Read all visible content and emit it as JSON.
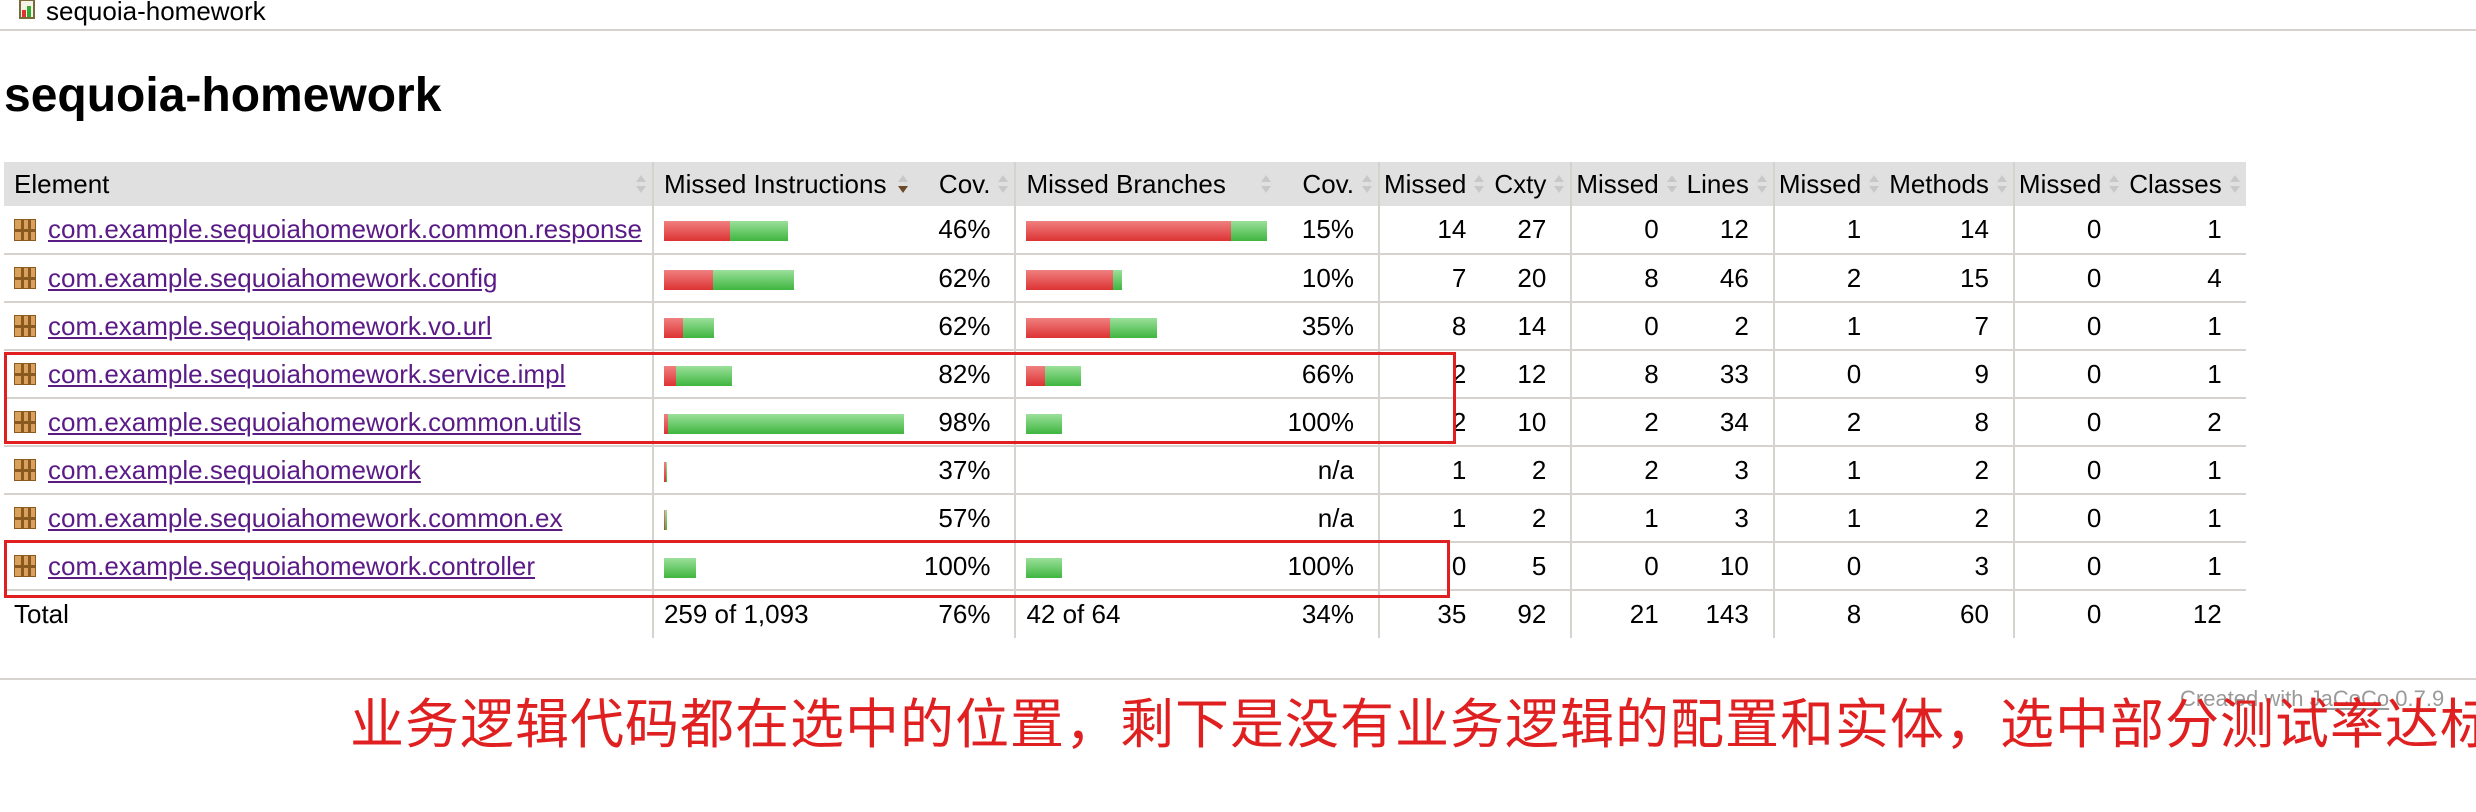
{
  "breadcrumb": {
    "text": "sequoia-homework"
  },
  "page_title": "sequoia-homework",
  "table": {
    "headers": {
      "element": "Element",
      "missed_instructions": "Missed Instructions",
      "cov1": "Cov.",
      "missed_branches": "Missed Branches",
      "cov2": "Cov.",
      "missed_cxty": "Missed",
      "cxty": "Cxty",
      "missed_lines": "Missed",
      "lines": "Lines",
      "missed_methods": "Missed",
      "methods": "Methods",
      "missed_classes": "Missed",
      "classes": "Classes"
    },
    "rows": [
      {
        "name": "com.example.sequoiahomework.common.response",
        "instr_cov": "46%",
        "branch_cov": "15%",
        "missed_cxty": "14",
        "cxty": "27",
        "missed_lines": "0",
        "lines": "12",
        "missed_methods": "1",
        "methods": "14",
        "missed_classes": "0",
        "classes": "1",
        "ibar": {
          "red": 66,
          "green": 58
        },
        "bbar": {
          "red": 205,
          "green": 36
        }
      },
      {
        "name": "com.example.sequoiahomework.config",
        "instr_cov": "62%",
        "branch_cov": "10%",
        "missed_cxty": "7",
        "cxty": "20",
        "missed_lines": "8",
        "lines": "46",
        "missed_methods": "2",
        "methods": "15",
        "missed_classes": "0",
        "classes": "4",
        "ibar": {
          "red": 49,
          "green": 81
        },
        "bbar": {
          "red": 87,
          "green": 9
        }
      },
      {
        "name": "com.example.sequoiahomework.vo.url",
        "instr_cov": "62%",
        "branch_cov": "35%",
        "missed_cxty": "8",
        "cxty": "14",
        "missed_lines": "0",
        "lines": "2",
        "missed_methods": "1",
        "methods": "7",
        "missed_classes": "0",
        "classes": "1",
        "ibar": {
          "red": 19,
          "green": 31
        },
        "bbar": {
          "red": 84,
          "green": 47
        }
      },
      {
        "name": "com.example.sequoiahomework.service.impl",
        "instr_cov": "82%",
        "branch_cov": "66%",
        "missed_cxty": "2",
        "cxty": "12",
        "missed_lines": "8",
        "lines": "33",
        "missed_methods": "0",
        "methods": "9",
        "missed_classes": "0",
        "classes": "1",
        "ibar": {
          "red": 12,
          "green": 56
        },
        "bbar": {
          "red": 19,
          "green": 36
        }
      },
      {
        "name": "com.example.sequoiahomework.common.utils",
        "instr_cov": "98%",
        "branch_cov": "100%",
        "missed_cxty": "2",
        "cxty": "10",
        "missed_lines": "2",
        "lines": "34",
        "missed_methods": "2",
        "methods": "8",
        "missed_classes": "0",
        "classes": "2",
        "ibar": {
          "red": 4,
          "green": 236
        },
        "bbar": {
          "red": 0,
          "green": 36
        }
      },
      {
        "name": "com.example.sequoiahomework",
        "instr_cov": "37%",
        "branch_cov": "n/a",
        "missed_cxty": "1",
        "cxty": "2",
        "missed_lines": "2",
        "lines": "3",
        "missed_methods": "1",
        "methods": "2",
        "missed_classes": "0",
        "classes": "1",
        "ibar": {
          "red": 2,
          "green": 1
        },
        "bbar": {
          "red": 0,
          "green": 0
        }
      },
      {
        "name": "com.example.sequoiahomework.common.ex",
        "instr_cov": "57%",
        "branch_cov": "n/a",
        "missed_cxty": "1",
        "cxty": "2",
        "missed_lines": "1",
        "lines": "3",
        "missed_methods": "1",
        "methods": "2",
        "missed_classes": "0",
        "classes": "1",
        "ibar": {
          "red": 1,
          "green": 2
        },
        "bbar": {
          "red": 0,
          "green": 0
        }
      },
      {
        "name": "com.example.sequoiahomework.controller",
        "instr_cov": "100%",
        "branch_cov": "100%",
        "missed_cxty": "0",
        "cxty": "5",
        "missed_lines": "0",
        "lines": "10",
        "missed_methods": "0",
        "methods": "3",
        "missed_classes": "0",
        "classes": "1",
        "ibar": {
          "red": 0,
          "green": 32
        },
        "bbar": {
          "red": 0,
          "green": 36
        }
      }
    ],
    "total": {
      "label": "Total",
      "missed_instructions": "259 of 1,093",
      "instr_cov": "76%",
      "missed_branches": "42 of 64",
      "branch_cov": "34%",
      "missed_cxty": "35",
      "cxty": "92",
      "missed_lines": "21",
      "lines": "143",
      "missed_methods": "8",
      "methods": "60",
      "missed_classes": "0",
      "classes": "12"
    }
  },
  "footer": {
    "created_prefix": "Created with",
    "jacoco_link": "JaCoCo",
    "version": "0.7.9"
  },
  "annotation": {
    "text": "业务逻辑代码都在选中的位置，剩下是没有业务逻辑的配置和实体，选中部分测试率达标",
    "color": "#e02020"
  }
}
